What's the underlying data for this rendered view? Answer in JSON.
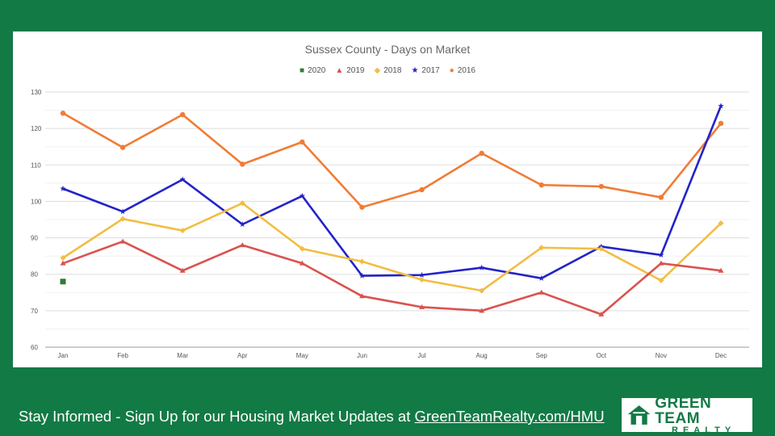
{
  "chart_data": {
    "type": "line",
    "title": "Sussex County - Days on Market",
    "xlabel": "",
    "ylabel": "",
    "categories": [
      "Jan",
      "Feb",
      "Mar",
      "Apr",
      "May",
      "Jun",
      "Jul",
      "Aug",
      "Sep",
      "Oct",
      "Nov",
      "Dec"
    ],
    "ylim": [
      60,
      130
    ],
    "yticks": [
      60,
      70,
      80,
      90,
      100,
      110,
      120,
      130
    ],
    "grid": true,
    "legend": "top-center",
    "series": [
      {
        "name": "2020",
        "color": "#2e7d32",
        "marker": "square",
        "values": [
          78,
          null,
          null,
          null,
          null,
          null,
          null,
          null,
          null,
          null,
          null,
          null
        ]
      },
      {
        "name": "2019",
        "color": "#d9534f",
        "marker": "triangle",
        "values": [
          83,
          89,
          81,
          88,
          83,
          74,
          71,
          70,
          75,
          69,
          83,
          81
        ]
      },
      {
        "name": "2018",
        "color": "#f2bd42",
        "marker": "diamond",
        "values": [
          84.5,
          95.2,
          92,
          99.5,
          87,
          83.5,
          78.5,
          75.5,
          87.3,
          87,
          78.3,
          94
        ]
      },
      {
        "name": "2017",
        "color": "#2323c8",
        "marker": "star",
        "values": [
          103.5,
          97.2,
          106,
          93.7,
          101.5,
          79.6,
          79.8,
          81.8,
          78.9,
          87.6,
          85.3,
          126.2
        ]
      },
      {
        "name": "2016",
        "color": "#f07c36",
        "marker": "circle",
        "values": [
          124.2,
          114.8,
          123.8,
          110.2,
          116.3,
          98.4,
          103.2,
          113.2,
          104.5,
          104.1,
          101.1,
          121.4
        ]
      }
    ]
  },
  "legend_symbols": {
    "square": "■",
    "triangle": "▲",
    "diamond": "◆",
    "star": "★",
    "circle": "●"
  },
  "footer": {
    "text": "Stay Informed - Sign Up for our Housing Market Updates at ",
    "link": "GreenTeamRealty.com/HMU"
  },
  "logo": {
    "line1": "GREEN TEAM",
    "line2": "REALTY",
    "icon": "house-icon"
  }
}
